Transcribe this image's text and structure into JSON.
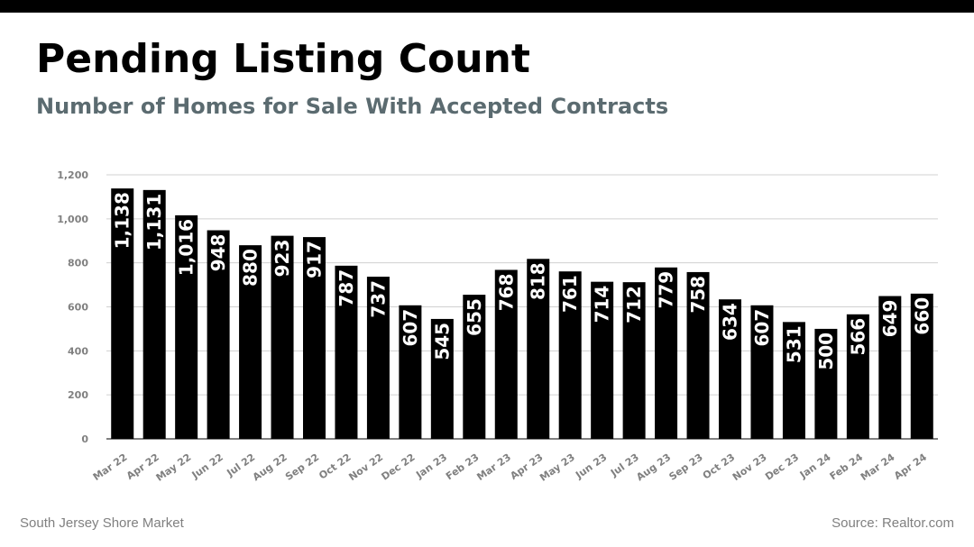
{
  "header": {
    "title": "Pending Listing Count",
    "subtitle": "Number of Homes for Sale With Accepted Contracts"
  },
  "footer": {
    "left": "South Jersey Shore Market",
    "right": "Source: Realtor.com"
  },
  "chart_data": {
    "type": "bar",
    "title": "",
    "xlabel": "",
    "ylabel": "",
    "ylim": [
      0,
      1200
    ],
    "yticks": [
      0,
      200,
      400,
      600,
      800,
      1000,
      1200
    ],
    "ytick_labels": [
      "0",
      "200",
      "400",
      "600",
      "800",
      "1,000",
      "1,200"
    ],
    "grid": true,
    "bar_color": "#000000",
    "label_color": "#ffffff",
    "categories": [
      "Mar 22",
      "Apr 22",
      "May 22",
      "Jun 22",
      "Jul 22",
      "Aug 22",
      "Sep 22",
      "Oct 22",
      "Nov 22",
      "Dec 22",
      "Jan 23",
      "Feb 23",
      "Mar 23",
      "Apr 23",
      "May 23",
      "Jun 23",
      "Jul 23",
      "Aug 23",
      "Sep 23",
      "Oct 23",
      "Nov 23",
      "Dec 23",
      "Jan 24",
      "Feb 24",
      "Mar 24",
      "Apr 24"
    ],
    "values": [
      1138,
      1131,
      1016,
      948,
      880,
      923,
      917,
      787,
      737,
      607,
      545,
      655,
      768,
      818,
      761,
      714,
      712,
      779,
      758,
      634,
      607,
      531,
      500,
      566,
      649,
      660
    ],
    "data_labels": [
      "1,138",
      "1,131",
      "1,016",
      "948",
      "880",
      "923",
      "917",
      "787",
      "737",
      "607",
      "545",
      "655",
      "768",
      "818",
      "761",
      "714",
      "712",
      "779",
      "758",
      "634",
      "607",
      "531",
      "500",
      "566",
      "649",
      "660"
    ]
  }
}
